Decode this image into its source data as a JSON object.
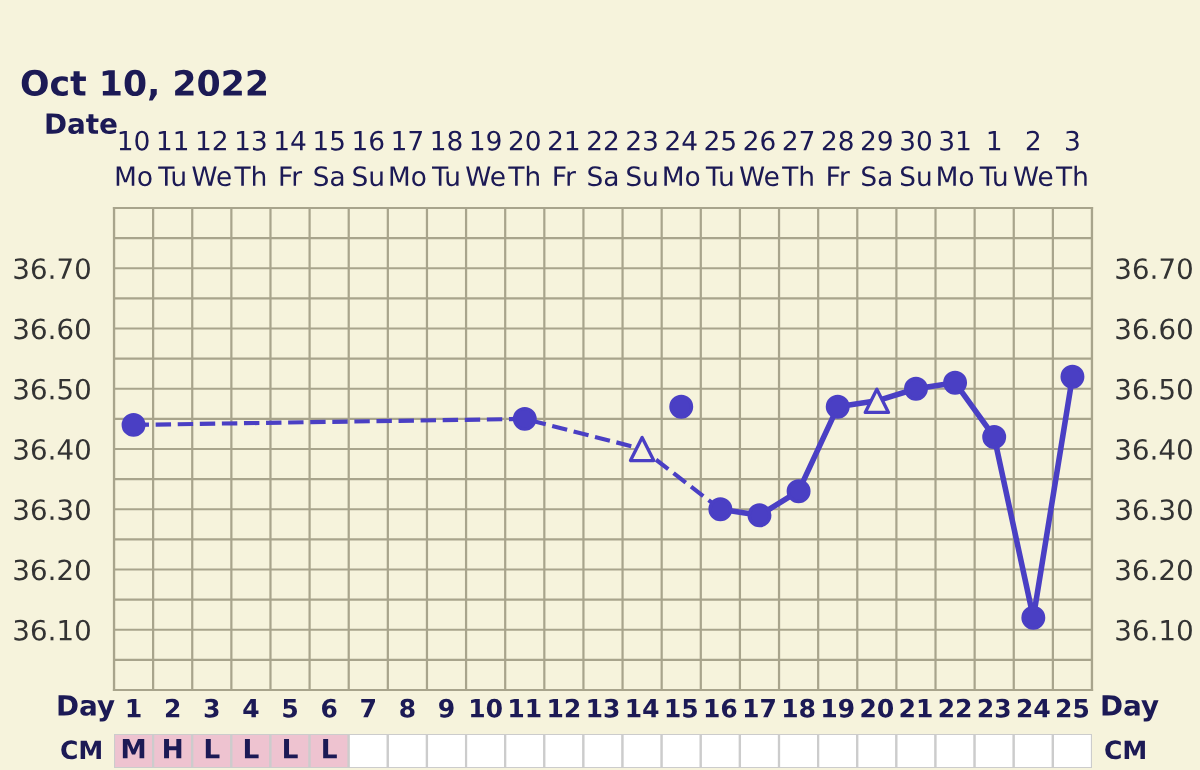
{
  "chart_data": [
    {
      "type": "line",
      "title": "Oct 10, 2022",
      "xlabel": "Day",
      "x2label": "Date",
      "xlim": [
        0.5,
        25.5
      ],
      "xticks": [
        1,
        2,
        3,
        4,
        5,
        6,
        7,
        8,
        9,
        10,
        11,
        12,
        13,
        14,
        15,
        16,
        17,
        18,
        19,
        20,
        21,
        22,
        23,
        24,
        25
      ],
      "x2lim": [
        "2022-10-09T12:00",
        "2022-11-03T12:00"
      ],
      "x2ticks": [
        {
          "value": "2022-10-10",
          "label": "10\nMo"
        },
        {
          "value": "2022-10-11",
          "label": "11\nTu"
        },
        {
          "value": "2022-10-12",
          "label": "12\nWe"
        },
        {
          "value": "2022-10-13",
          "label": "13\nTh"
        },
        {
          "value": "2022-10-14",
          "label": "14\nFr"
        },
        {
          "value": "2022-10-15",
          "label": "15\nSa"
        },
        {
          "value": "2022-10-16",
          "label": "16\nSu"
        },
        {
          "value": "2022-10-17",
          "label": "17\nMo"
        },
        {
          "value": "2022-10-18",
          "label": "18\nTu"
        },
        {
          "value": "2022-10-19",
          "label": "19\nWe"
        },
        {
          "value": "2022-10-20",
          "label": "20\nTh"
        },
        {
          "value": "2022-10-21",
          "label": "21\nFr"
        },
        {
          "value": "2022-10-22",
          "label": "22\nSa"
        },
        {
          "value": "2022-10-23",
          "label": "23\nSu"
        },
        {
          "value": "2022-10-24",
          "label": "24\nMo"
        },
        {
          "value": "2022-10-25",
          "label": "25\nTu"
        },
        {
          "value": "2022-10-26",
          "label": "26\nWe"
        },
        {
          "value": "2022-10-27",
          "label": "27\nTh"
        },
        {
          "value": "2022-10-28",
          "label": "28\nFr"
        },
        {
          "value": "2022-10-29",
          "label": "29\nSa"
        },
        {
          "value": "2022-10-30",
          "label": "30\nSu"
        },
        {
          "value": "2022-10-31",
          "label": "31\nMo"
        },
        {
          "value": "2022-11-01",
          "label": "1\nTu"
        },
        {
          "value": "2022-11-02",
          "label": "2\nWe"
        },
        {
          "value": "2022-11-03",
          "label": "3\nTh"
        }
      ],
      "ylim": [
        36.0,
        36.8
      ],
      "yticks": [
        {
          "value": 36.1,
          "label": "36.10"
        },
        {
          "value": 36.2,
          "label": "36.20"
        },
        {
          "value": 36.3,
          "label": "36.30"
        },
        {
          "value": 36.4,
          "label": "36.40"
        },
        {
          "value": 36.5,
          "label": "36.50"
        },
        {
          "value": 36.6,
          "label": "36.60"
        },
        {
          "value": 36.7,
          "label": "36.70"
        }
      ],
      "y2lim": [
        36.0,
        36.8
      ],
      "y2ticks": [
        {
          "value": 36.1,
          "label": "36.10"
        },
        {
          "value": 36.2,
          "label": "36.20"
        },
        {
          "value": 36.3,
          "label": "36.30"
        },
        {
          "value": 36.4,
          "label": "36.40"
        },
        {
          "value": 36.5,
          "label": "36.50"
        },
        {
          "value": 36.6,
          "label": "36.60"
        },
        {
          "value": 36.7,
          "label": "36.70"
        }
      ],
      "grid": true,
      "series": [
        {
          "type": "line",
          "color": "#4a3fc4",
          "line_style": "dashed",
          "marker": "none",
          "x": [
            1,
            11,
            14,
            16
          ],
          "values": [
            36.44,
            36.45,
            36.4,
            36.3
          ]
        },
        {
          "type": "line",
          "color": "#4a3fc4",
          "line_style": "solid",
          "marker": "none",
          "x": [
            16,
            17,
            18,
            19,
            20,
            21,
            22,
            23,
            24,
            25
          ],
          "values": [
            36.3,
            36.29,
            36.33,
            36.47,
            36.48,
            36.5,
            36.51,
            36.42,
            36.12,
            36.52
          ]
        },
        {
          "type": "scatter",
          "color": "#4a3fc4",
          "marker": "circle",
          "x": [
            1,
            11,
            15,
            16,
            17,
            18,
            19,
            21,
            22,
            23,
            24,
            25
          ],
          "values": [
            36.44,
            36.45,
            36.47,
            36.3,
            36.29,
            36.33,
            36.47,
            36.5,
            36.51,
            36.42,
            36.12,
            36.52
          ]
        },
        {
          "type": "scatter",
          "color": "#4a3fc4",
          "marker": "triangle",
          "x": [
            14,
            20
          ],
          "values": [
            36.4,
            36.48
          ]
        }
      ]
    },
    {
      "type": "other",
      "ylabel": "CM",
      "annotations": [
        "M",
        "H",
        "L",
        "L",
        "L",
        "L"
      ]
    }
  ]
}
